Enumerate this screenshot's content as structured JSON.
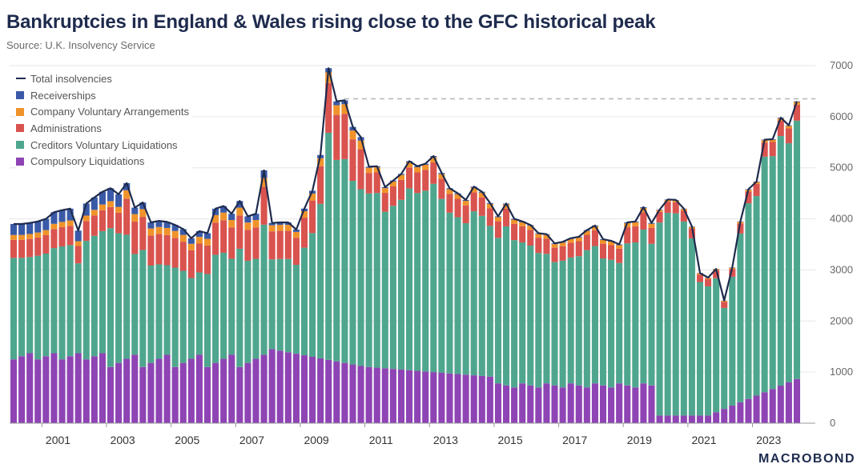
{
  "header": {
    "title": "Bankruptcies in England & Wales rising close to the GFC historical peak",
    "source": "Source: U.K. Insolvency Service"
  },
  "brand": "MACROBOND",
  "colors": {
    "compulsory": "#8e44b4",
    "cvl": "#4fa68e",
    "administrations": "#d9534f",
    "cva": "#f0932b",
    "receiverships": "#3a5aa8",
    "total_line": "#1e2b4d"
  },
  "chart_data": {
    "type": "bar",
    "stacked": true,
    "title": "Bankruptcies in England & Wales rising close to the GFC historical peak",
    "frequency": "quarterly",
    "start": "2000Q1",
    "ylim": [
      0,
      7000
    ],
    "y_ticks": [
      0,
      1000,
      2000,
      3000,
      4000,
      5000,
      6000,
      7000
    ],
    "y_axis_side": "right",
    "x_tick_labels": [
      "2001",
      "2003",
      "2005",
      "2007",
      "2009",
      "2011",
      "2013",
      "2015",
      "2017",
      "2019",
      "2021",
      "2023"
    ],
    "reference_line": {
      "value": 6350,
      "style": "dashed"
    },
    "legend_position": "top-left",
    "series": [
      {
        "name": "Total insolvencies",
        "type": "line",
        "key": "total"
      },
      {
        "name": "Receiverships",
        "key": "receiverships"
      },
      {
        "name": "Company Voluntary Arrangements",
        "key": "cva"
      },
      {
        "name": "Administrations",
        "key": "administrations"
      },
      {
        "name": "Creditors Voluntary Liquidations",
        "key": "cvl"
      },
      {
        "name": "Compulsory Liquidations",
        "key": "compulsory"
      }
    ],
    "total": [
      3900,
      3900,
      3920,
      3950,
      4000,
      4130,
      4170,
      4200,
      3770,
      4300,
      4420,
      4530,
      4600,
      4480,
      4700,
      4220,
      4320,
      3930,
      3960,
      3940,
      3880,
      3800,
      3620,
      3760,
      3720,
      4200,
      4250,
      4100,
      4350,
      4050,
      4100,
      4950,
      3920,
      3930,
      3930,
      3790,
      4200,
      4550,
      5250,
      6950,
      6300,
      6320,
      5800,
      5600,
      5020,
      5030,
      4620,
      4750,
      4880,
      5130,
      5030,
      5080,
      5230,
      4900,
      4600,
      4500,
      4370,
      4630,
      4530,
      4310,
      4050,
      4300,
      4000,
      3950,
      3880,
      3720,
      3700,
      3520,
      3550,
      3620,
      3650,
      3780,
      3870,
      3600,
      3570,
      3500,
      3930,
      3950,
      4230,
      3920,
      4180,
      4380,
      4370,
      4200,
      3850,
      2940,
      2850,
      3020,
      2400,
      3050,
      3950,
      4580,
      4730,
      5550,
      5560,
      5980,
      5830,
      6300
    ]
  }
}
